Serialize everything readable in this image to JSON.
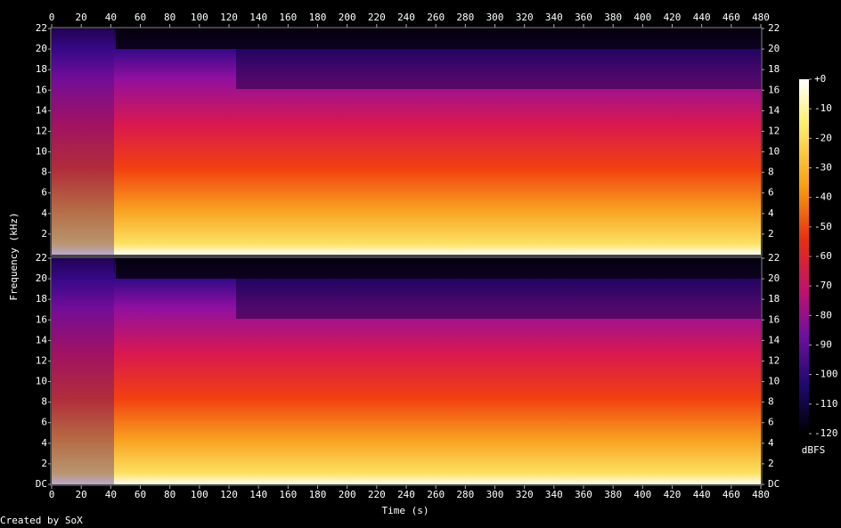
{
  "chart_data": {
    "type": "spectrogram",
    "xlabel": "Time (s)",
    "ylabel": "Frequency (kHz)",
    "xlim": [
      0,
      480
    ],
    "xticks": [
      0,
      20,
      40,
      60,
      80,
      100,
      120,
      140,
      160,
      180,
      200,
      220,
      240,
      260,
      280,
      300,
      320,
      340,
      360,
      380,
      400,
      420,
      440,
      460,
      480
    ],
    "panels": [
      {
        "ylim": [
          0,
          22
        ],
        "yticks": [
          2,
          4,
          6,
          8,
          10,
          12,
          14,
          16,
          18,
          20,
          22
        ]
      },
      {
        "ylim": [
          0,
          22
        ],
        "yticks": [
          {
            "value": 0,
            "label": "DC"
          },
          2,
          4,
          6,
          8,
          10,
          12,
          14,
          16,
          18,
          20,
          22
        ]
      }
    ],
    "colorbar": {
      "label": "dBFS",
      "lim": [
        -120,
        0
      ],
      "ticks": [
        {
          "value": 0,
          "label": "+0"
        },
        -10,
        -20,
        -30,
        -40,
        -50,
        -60,
        -70,
        -80,
        -90,
        -100,
        -110,
        -120
      ]
    },
    "credit": "Created by SoX"
  }
}
